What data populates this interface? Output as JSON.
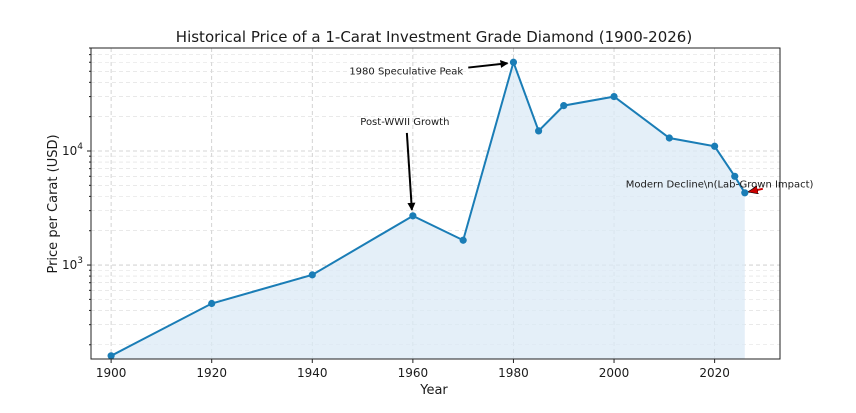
{
  "chart_data": {
    "type": "line",
    "title": "Historical Price of a 1-Carat Investment Grade Diamond (1900-2026)",
    "xlabel": "Year",
    "ylabel": "Price per Carat (USD)",
    "xlim": [
      1896,
      2033
    ],
    "ylim": [
      150,
      80000
    ],
    "yscale": "log",
    "grid": true,
    "x_ticks": [
      1900,
      1920,
      1940,
      1960,
      1980,
      2000,
      2020
    ],
    "x_tick_labels": [
      "1900",
      "1920",
      "1940",
      "1960",
      "1980",
      "2000",
      "2020"
    ],
    "y_ticks": [
      1000,
      10000
    ],
    "y_tick_labels": [
      {
        "base": "10",
        "exp": "3"
      },
      {
        "base": "10",
        "exp": "4"
      }
    ],
    "color": "#1a7db6",
    "fill_color": "#dbeaf5",
    "series": [
      {
        "x": [
          1900,
          1920,
          1940,
          1960,
          1970,
          1980,
          1985,
          1990,
          2000,
          2011,
          2020,
          2024,
          2026
        ],
        "y": [
          160,
          460,
          820,
          2700,
          1650,
          60000,
          15000,
          25000,
          30000,
          13000,
          11000,
          6000,
          4300
        ]
      }
    ],
    "annotations": [
      {
        "text": "Post-WWII Growth",
        "x": 1960,
        "y": 2700,
        "text_x": 1960,
        "text_y": 15000,
        "arrow_color": "#000000"
      },
      {
        "text": "1980 Speculative Peak",
        "x": 1980,
        "y": 60000,
        "text_x": 1973,
        "text_y": 55000,
        "arrow_color": "#000000"
      },
      {
        "text": "Modern Decline\\n(Lab-Grown Impact)",
        "x": 2026,
        "y": 4300,
        "text_x": 2020,
        "text_y": 5000,
        "arrow_color": "#cc0000"
      }
    ]
  }
}
